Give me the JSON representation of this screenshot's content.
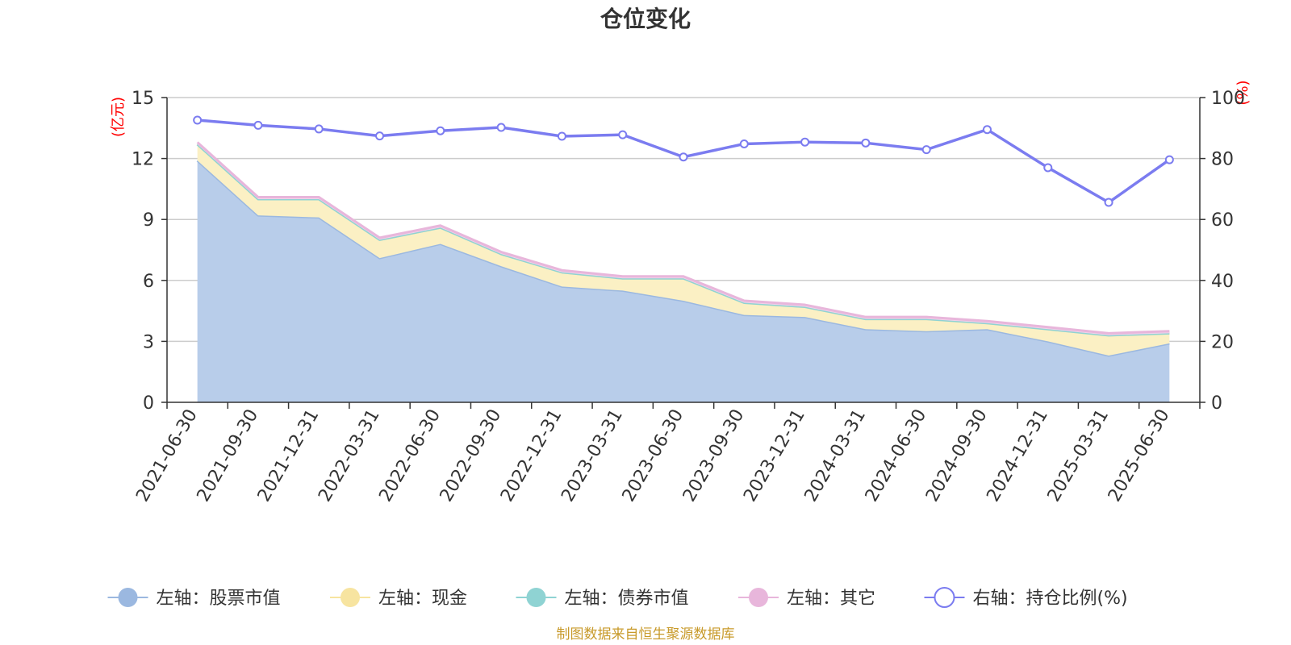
{
  "chart_data": {
    "type": "area",
    "title": "仓位变化",
    "categories": [
      "2021-06-30",
      "2021-09-30",
      "2021-12-31",
      "2022-03-31",
      "2022-06-30",
      "2022-09-30",
      "2022-12-31",
      "2023-03-31",
      "2023-06-30",
      "2023-09-30",
      "2023-12-31",
      "2024-03-31",
      "2024-06-30",
      "2024-09-30",
      "2024-12-31",
      "2025-03-31",
      "2025-06-30"
    ],
    "left_axis": {
      "unit": "(亿元)",
      "ylim": [
        0,
        15
      ],
      "ticks": [
        0,
        3,
        6,
        9,
        12,
        15
      ]
    },
    "right_axis": {
      "unit": "(%)",
      "ylim": [
        0,
        100
      ],
      "ticks": [
        0,
        20,
        40,
        60,
        80,
        100
      ]
    },
    "grid": true,
    "legend_position": "bottom",
    "series": [
      {
        "name": "左轴：股票市值",
        "axis": "left",
        "stacked": true,
        "color": "#9bb8e0",
        "fill": "#b8cdea",
        "values": [
          11.9,
          9.2,
          9.1,
          7.1,
          7.8,
          6.7,
          5.7,
          5.5,
          5.0,
          4.3,
          4.2,
          3.6,
          3.5,
          3.6,
          3.0,
          2.3,
          2.9
        ]
      },
      {
        "name": "左轴：现金",
        "axis": "left",
        "stacked": true,
        "color": "#f7e4a0",
        "fill": "#fbf0c4",
        "values": [
          0.8,
          0.8,
          0.9,
          0.9,
          0.8,
          0.6,
          0.7,
          0.6,
          1.1,
          0.6,
          0.5,
          0.5,
          0.6,
          0.3,
          0.6,
          1.0,
          0.5
        ]
      },
      {
        "name": "左轴：债券市值",
        "axis": "left",
        "stacked": true,
        "color": "#8fd3d3",
        "fill": "#bfe6e6",
        "values": [
          0,
          0,
          0,
          0,
          0,
          0,
          0,
          0,
          0,
          0,
          0,
          0,
          0,
          0,
          0,
          0,
          0
        ]
      },
      {
        "name": "左轴：其它",
        "axis": "left",
        "stacked": true,
        "color": "#e8b6db",
        "fill": "#f2d2ea",
        "values": [
          0.1,
          0.1,
          0.1,
          0.1,
          0.1,
          0.1,
          0.1,
          0.1,
          0.1,
          0.1,
          0.1,
          0.1,
          0.1,
          0.1,
          0.1,
          0.1,
          0.1
        ]
      },
      {
        "name": "右轴：持仓比例(%)",
        "axis": "right",
        "color": "#7b7cf0",
        "values": [
          92.6,
          90.9,
          89.7,
          87.4,
          89.1,
          90.2,
          87.3,
          87.8,
          80.5,
          84.8,
          85.4,
          85.1,
          82.9,
          89.5,
          77.0,
          65.6,
          79.6
        ]
      }
    ]
  },
  "source_text": "制图数据来自恒生聚源数据库",
  "colors": {
    "left_unit": "#ff0000",
    "right_unit": "#ff0000",
    "source": "#c89a2a",
    "axis": "#333333",
    "grid": "#cccccc"
  }
}
